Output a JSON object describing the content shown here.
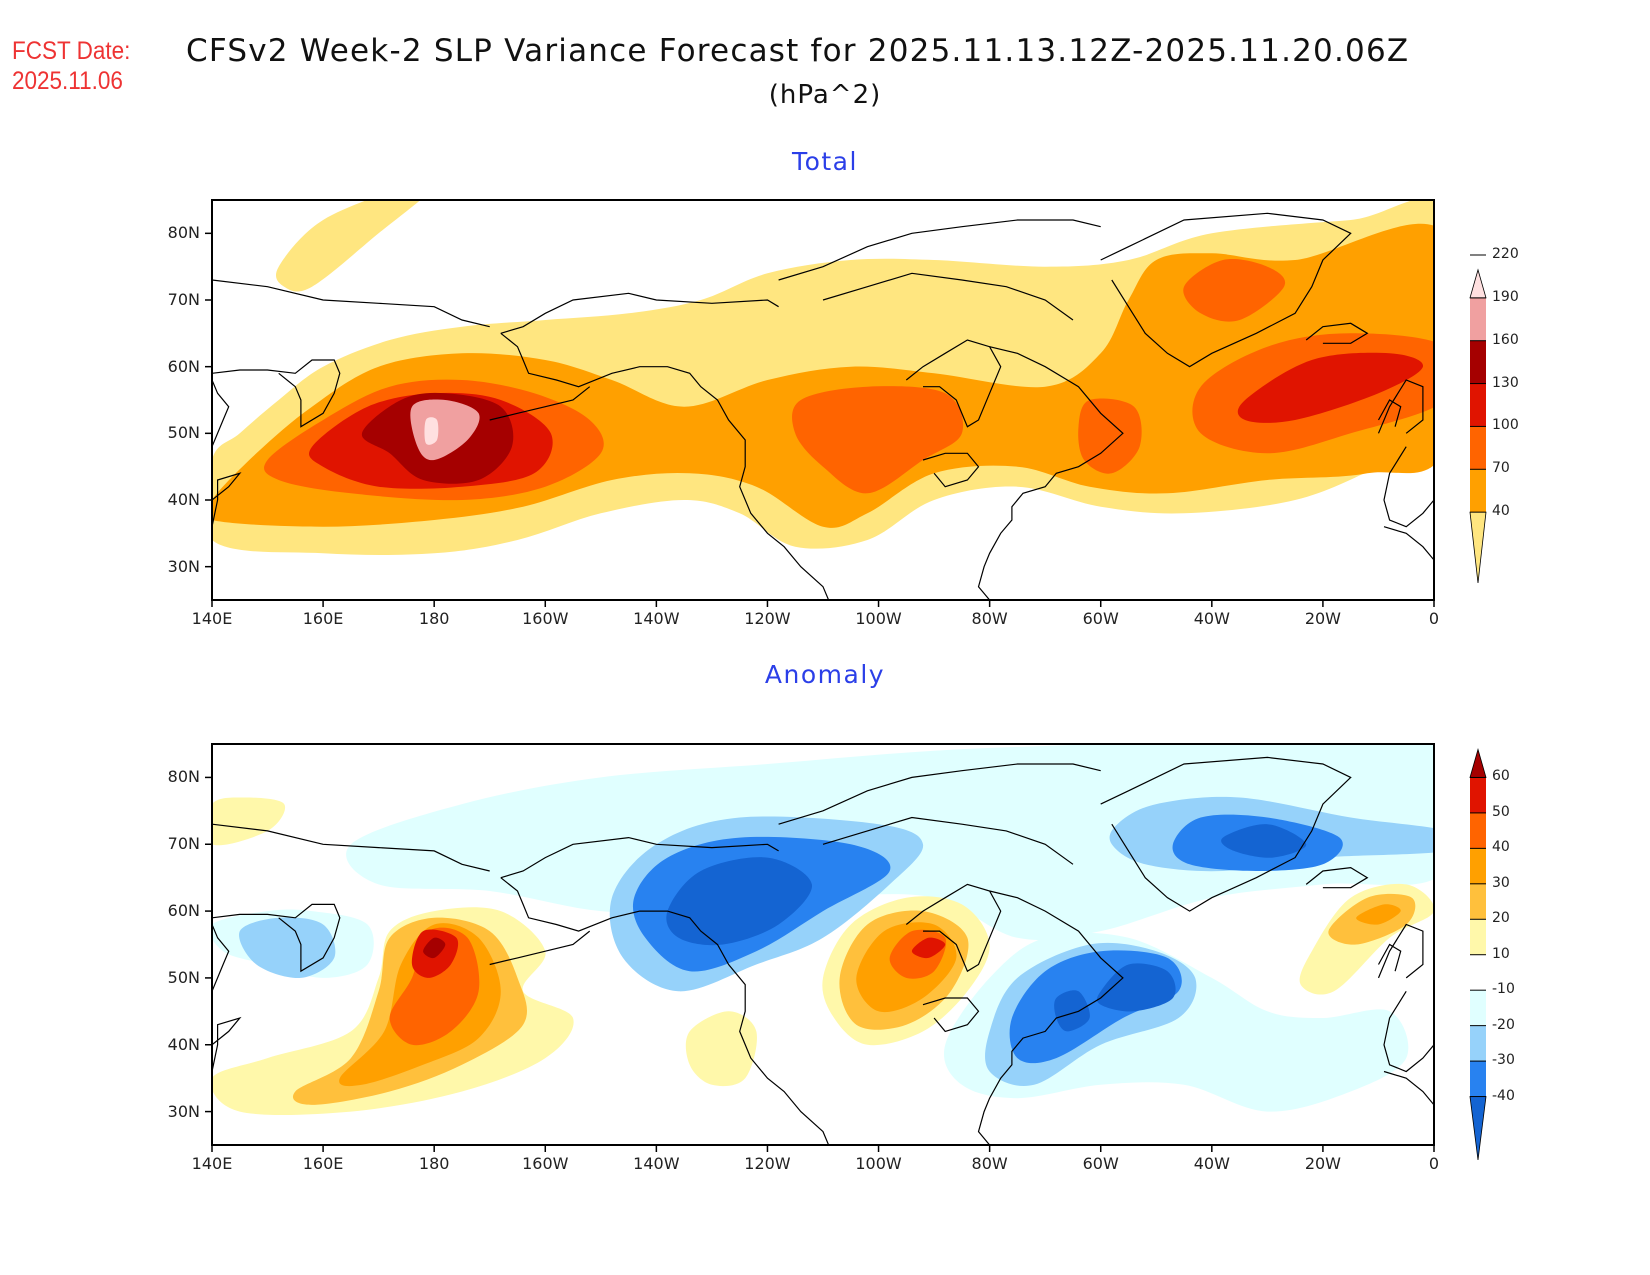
{
  "header": {
    "fcst_label": "FCST Date:",
    "fcst_date": "2025.11.06",
    "title": "CFSv2 Week-2 SLP Variance Forecast for 2025.11.13.12Z-2025.11.20.06Z",
    "units": "(hPa^2)"
  },
  "axes": {
    "lat_ticks": [
      "80N",
      "70N",
      "60N",
      "50N",
      "40N",
      "30N"
    ],
    "lon_ticks": [
      "140E",
      "160E",
      "180",
      "160W",
      "140W",
      "120W",
      "100W",
      "80W",
      "60W",
      "40W",
      "20W",
      "0"
    ],
    "lat_range": [
      25,
      85
    ],
    "lon_range": [
      "140E",
      "0"
    ]
  },
  "chart_data": [
    {
      "type": "heatmap",
      "title": "Total",
      "units": "hPa^2",
      "colorbar": {
        "levels": [
          "40",
          "70",
          "100",
          "130",
          "160",
          "190",
          "220"
        ],
        "colors": [
          "#ffe680",
          "#ffa000",
          "#ff6400",
          "#e01400",
          "#a50000",
          "#f0a0a0",
          "#ffe0e0"
        ],
        "extend": "both"
      },
      "features": [
        {
          "region": "North Pacific (180, 52N)",
          "max_level": ">220"
        },
        {
          "region": "Central Canada (100W, 53N)",
          "max_level": "100-130"
        },
        {
          "region": "Labrador Sea (55W, 50N)",
          "max_level": "100-130"
        },
        {
          "region": "Greenland (40W, 72N)",
          "max_level": "100-130"
        },
        {
          "region": "North Atlantic (25W, 60N)",
          "max_level": "130-160"
        }
      ]
    },
    {
      "type": "heatmap",
      "title": "Anomaly",
      "units": "hPa^2",
      "colorbar": {
        "levels": [
          "-40",
          "-30",
          "-20",
          "-10",
          "10",
          "20",
          "30",
          "40",
          "50",
          "60"
        ],
        "colors": [
          "#1464d2",
          "#2882f0",
          "#96d2fa",
          "#e0ffff",
          "#ffffff",
          "#fff8aa",
          "#ffc03c",
          "#ffa000",
          "#ff6400",
          "#e01400",
          "#a50000"
        ],
        "extend": "both"
      },
      "features": [
        {
          "region": "Bering Sea (175E, 53N)",
          "max_level": ">60"
        },
        {
          "region": "Gulf of Alaska / Alaska (135W, 60N)",
          "min_level": "-40 to -30"
        },
        {
          "region": "Hudson Bay region (90W, 55N)",
          "max_level": "50-60"
        },
        {
          "region": "Eastern Canada / NW Atlantic (60W, 47N)",
          "min_level": "-40 to -30"
        },
        {
          "region": "Greenland (40W, 70N)",
          "min_level": "-40 to -30"
        },
        {
          "region": "Iceland (20W, 62N)",
          "max_level": "30-40"
        }
      ]
    }
  ]
}
